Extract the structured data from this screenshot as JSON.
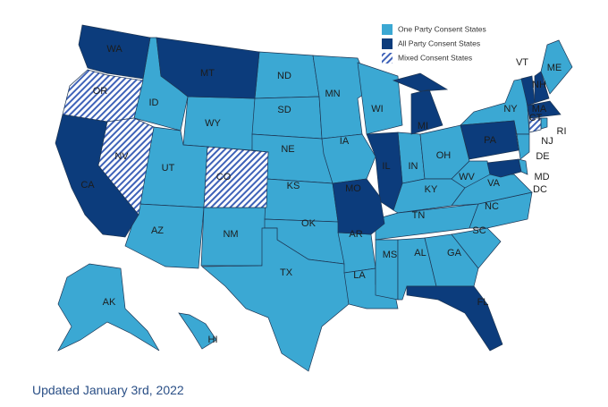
{
  "legend": [
    {
      "label": "One Party Consent States",
      "color": "#3ba8d3",
      "states": [
        "ID",
        "WY",
        "UT",
        "AZ",
        "NM",
        "ND",
        "SD",
        "NE",
        "KS",
        "OK",
        "TX",
        "MN",
        "IA",
        "AR",
        "LA",
        "WI",
        "IN",
        "OH",
        "KY",
        "TN",
        "MS",
        "AL",
        "GA",
        "SC",
        "NC",
        "VA",
        "WV",
        "NY",
        "ME",
        "NJ",
        "DE",
        "DC",
        "RI",
        "AK",
        "HI"
      ]
    },
    {
      "label": "All Party Consent States",
      "color": "#0c3c7c",
      "states": [
        "WA",
        "MT",
        "CA",
        "MI",
        "IL",
        "MO",
        "PA",
        "MD",
        "FL",
        "VT",
        "NH",
        "MA"
      ]
    },
    {
      "label": "Mixed Consent States",
      "color": "#3e62b8",
      "hatched": true,
      "states": [
        "OR",
        "NV",
        "CO",
        "CT"
      ]
    }
  ],
  "footer": "Updated January 3rd, 2022"
}
